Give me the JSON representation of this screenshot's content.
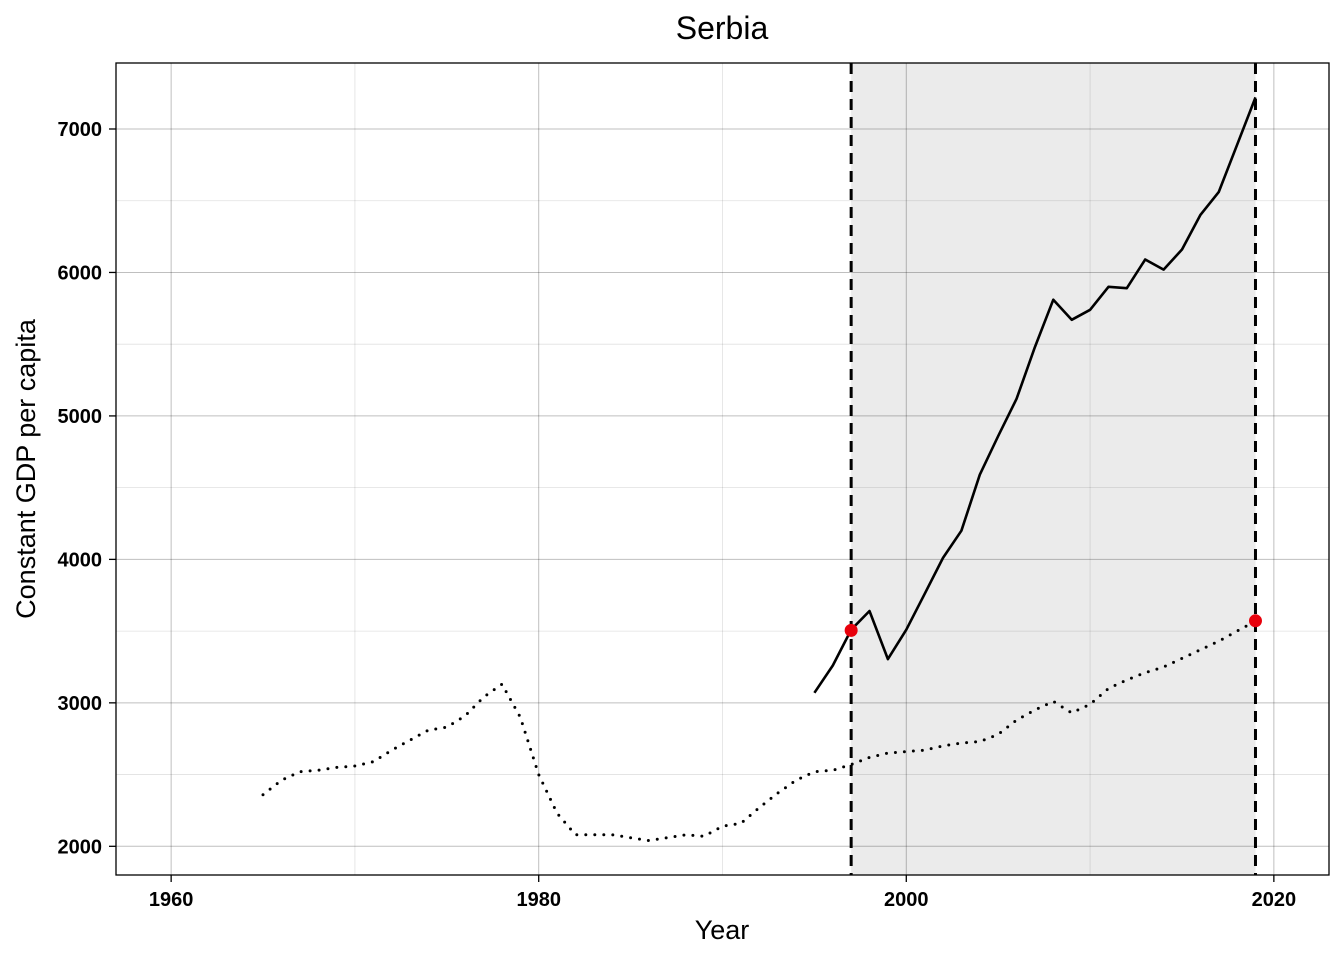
{
  "chart_data": {
    "type": "line",
    "title": "Serbia",
    "xlabel": "Year",
    "ylabel": "Constant GDP per capita",
    "xlim": [
      1957,
      2023
    ],
    "ylim": [
      1800,
      7460
    ],
    "x_ticks": [
      1960,
      1980,
      2000,
      2020
    ],
    "y_ticks": [
      2000,
      3000,
      4000,
      5000,
      6000,
      7000
    ],
    "grid": true,
    "legend": "none",
    "shaded_region": {
      "x_start": 1997,
      "x_end": 2019,
      "color": "#ebebeb"
    },
    "vertical_lines": [
      1997,
      2019
    ],
    "series": [
      {
        "style": "solid",
        "color": "#000000",
        "x": [
          1995,
          1996,
          1997,
          1998,
          1999,
          2000,
          2001,
          2002,
          2003,
          2004,
          2005,
          2006,
          2007,
          2008,
          2009,
          2010,
          2011,
          2012,
          2013,
          2014,
          2015,
          2016,
          2017,
          2018,
          2019
        ],
        "y": [
          3070,
          3260,
          3510,
          3640,
          3305,
          3510,
          3760,
          4010,
          4200,
          4590,
          4860,
          5120,
          5480,
          5810,
          5670,
          5740,
          5900,
          5890,
          6090,
          6020,
          6160,
          6400,
          6560,
          6890,
          7220
        ]
      },
      {
        "style": "dotted",
        "color": "#000000",
        "x": [
          1965,
          1966,
          1967,
          1968,
          1969,
          1970,
          1971,
          1972,
          1973,
          1974,
          1975,
          1976,
          1977,
          1978,
          1979,
          1980,
          1981,
          1982,
          1983,
          1984,
          1985,
          1986,
          1987,
          1988,
          1989,
          1990,
          1991,
          1992,
          1993,
          1994,
          1995,
          1996,
          1997,
          1998,
          1999,
          2000,
          2001,
          2002,
          2003,
          2004,
          2005,
          2006,
          2007,
          2008,
          2009,
          2010,
          2011,
          2012,
          2013,
          2014,
          2015,
          2016,
          2017,
          2018,
          2019
        ],
        "y": [
          2360,
          2460,
          2520,
          2530,
          2550,
          2560,
          2590,
          2670,
          2740,
          2810,
          2830,
          2910,
          3040,
          3130,
          2900,
          2500,
          2230,
          2080,
          2080,
          2080,
          2060,
          2040,
          2060,
          2080,
          2070,
          2140,
          2160,
          2270,
          2370,
          2460,
          2520,
          2530,
          2570,
          2620,
          2650,
          2660,
          2670,
          2700,
          2720,
          2730,
          2780,
          2880,
          2950,
          3010,
          2930,
          2990,
          3100,
          3160,
          3210,
          3250,
          3310,
          3370,
          3430,
          3500,
          3570
        ]
      }
    ],
    "points": [
      {
        "x": 1997,
        "y": 3505,
        "color": "#e8000b"
      },
      {
        "x": 2019,
        "y": 3572,
        "color": "#e8000b"
      }
    ]
  }
}
